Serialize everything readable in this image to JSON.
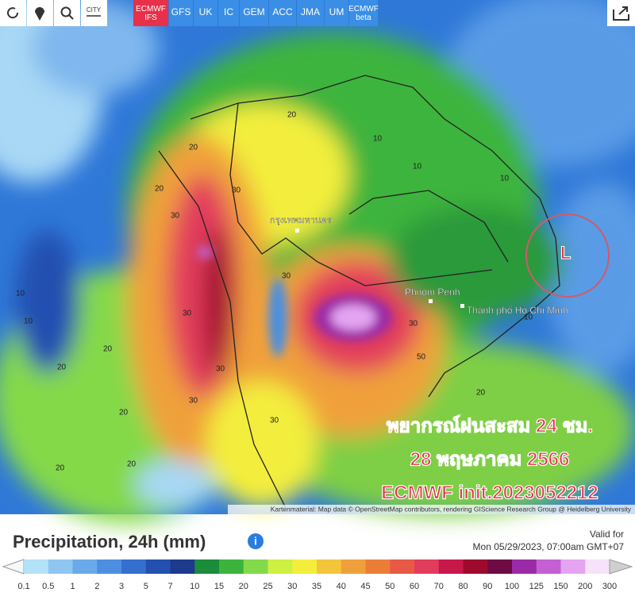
{
  "toolbar": {
    "city_icon": "CITY",
    "models": [
      "ECMWF IFS",
      "GFS",
      "UK",
      "IC",
      "GEM",
      "ACC",
      "JMA",
      "UM",
      "ECMWF beta"
    ],
    "active_model": 0
  },
  "map": {
    "places": [
      "Phnom Penh",
      "Thành phố Hồ Chí Minh",
      "กรุงเทพมหานคร"
    ],
    "low_marker": "L",
    "contour_labels": [
      "20",
      "30",
      "30",
      "20",
      "30",
      "30",
      "20",
      "20",
      "10",
      "10",
      "20",
      "30",
      "20",
      "30",
      "10",
      "10",
      "10",
      "20",
      "50",
      "30",
      "20",
      "10",
      "30",
      "20"
    ],
    "annotation": [
      "พยากรณ์ฝนสะสม 24 ชม.",
      "28  พฤษภาคม 2566",
      "ECMWF init.2023052212"
    ],
    "attribution": "Kartenmaterial: Map data © OpenStreetMap contributors, rendering GIScience Research Group @ Heidelberg University"
  },
  "legend": {
    "title": "Precipitation, 24h (mm)",
    "valid_label": "Valid for",
    "valid_time": "Mon 05/29/2023, 07:00am GMT+07",
    "labels": [
      "0.1",
      "0.5",
      "1",
      "2",
      "3",
      "5",
      "7",
      "10",
      "15",
      "20",
      "25",
      "30",
      "35",
      "40",
      "45",
      "50",
      "60",
      "70",
      "80",
      "90",
      "100",
      "125",
      "150",
      "200",
      "300"
    ],
    "colors": [
      "#f4f8fc",
      "#b3e1f7",
      "#8fc6f1",
      "#6aaaea",
      "#4c8fe0",
      "#356fd0",
      "#2450b0",
      "#1e3a8c",
      "#1b8b3c",
      "#3cb43c",
      "#84d94a",
      "#cdf042",
      "#f3ee3c",
      "#f4c53a",
      "#f0a03a",
      "#ec7d37",
      "#e85a46",
      "#e23c5c",
      "#c8184a",
      "#9e0a2c",
      "#6e0a44",
      "#9c2aa8",
      "#c460d2",
      "#e4a4f2",
      "#f6e2fa",
      "#cfcfcf"
    ]
  }
}
